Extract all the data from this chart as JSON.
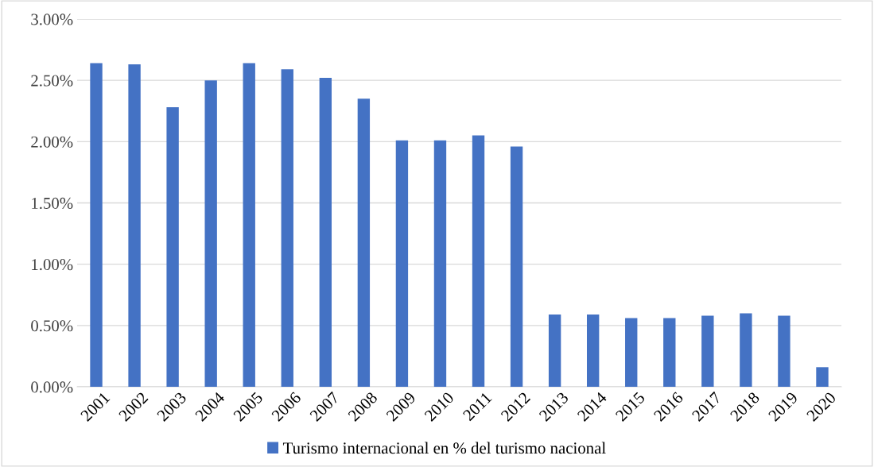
{
  "chart_data": {
    "type": "bar",
    "categories": [
      "2001",
      "2002",
      "2003",
      "2004",
      "2005",
      "2006",
      "2007",
      "2008",
      "2009",
      "2010",
      "2011",
      "2012",
      "2013",
      "2014",
      "2015",
      "2016",
      "2017",
      "2018",
      "2019",
      "2020"
    ],
    "series": [
      {
        "name": "Turismo internacional en % del turismo nacional",
        "color": "#4472c4",
        "values": [
          2.64,
          2.63,
          2.28,
          2.5,
          2.64,
          2.59,
          2.52,
          2.35,
          2.01,
          2.01,
          2.05,
          1.96,
          0.59,
          0.59,
          0.56,
          0.56,
          0.58,
          0.6,
          0.58,
          0.16
        ]
      }
    ],
    "ylim": [
      0,
      3
    ],
    "yticks": [
      {
        "value": 0,
        "label": "0.00%"
      },
      {
        "value": 0.5,
        "label": "0.50%"
      },
      {
        "value": 1,
        "label": "1.00%"
      },
      {
        "value": 1.5,
        "label": "1.50%"
      },
      {
        "value": 2,
        "label": "2.00%"
      },
      {
        "value": 2.5,
        "label": "2.50%"
      },
      {
        "value": 3,
        "label": "3.00%"
      }
    ],
    "grid": "y",
    "legend": "bottom"
  }
}
